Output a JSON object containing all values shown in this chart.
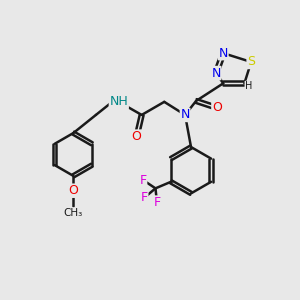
{
  "background_color": "#e8e8e8",
  "bond_color": "#1a1a1a",
  "atom_colors": {
    "N": "#0000ee",
    "O": "#ee0000",
    "S": "#cccc00",
    "F": "#dd00dd",
    "NH": "#008888",
    "C": "#1a1a1a"
  },
  "title": "",
  "figsize": [
    3.0,
    3.0
  ],
  "dpi": 100
}
